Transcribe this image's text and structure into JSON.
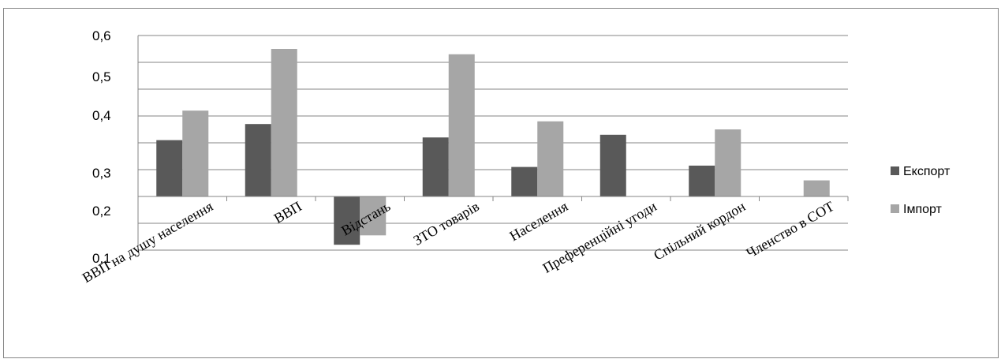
{
  "chart_data": {
    "type": "bar",
    "title": "",
    "xlabel": "",
    "ylabel": "",
    "categories": [
      "ВВП на душу населення",
      "ВВП",
      "Відстань",
      "ЗТО товарів",
      "Населення",
      "Преференційні угоди",
      "Спільний кордон",
      "Членство в СОТ"
    ],
    "series": [
      {
        "name": "Експорт",
        "color": "#595959",
        "values": [
          0.21,
          0.27,
          -0.18,
          0.22,
          0.11,
          0.23,
          0.115,
          0
        ]
      },
      {
        "name": "Імпорт",
        "color": "#a6a6a6",
        "values": [
          0.32,
          0.55,
          -0.145,
          0.53,
          0.28,
          0,
          0.25,
          0.06
        ]
      }
    ],
    "y_tick_labels": [
      "0,6",
      "0,5",
      "0,4",
      "0,3",
      "0,2",
      "0,1"
    ],
    "ylim": [
      -0.3,
      0.6
    ],
    "grid": true,
    "legend_position": "right"
  }
}
